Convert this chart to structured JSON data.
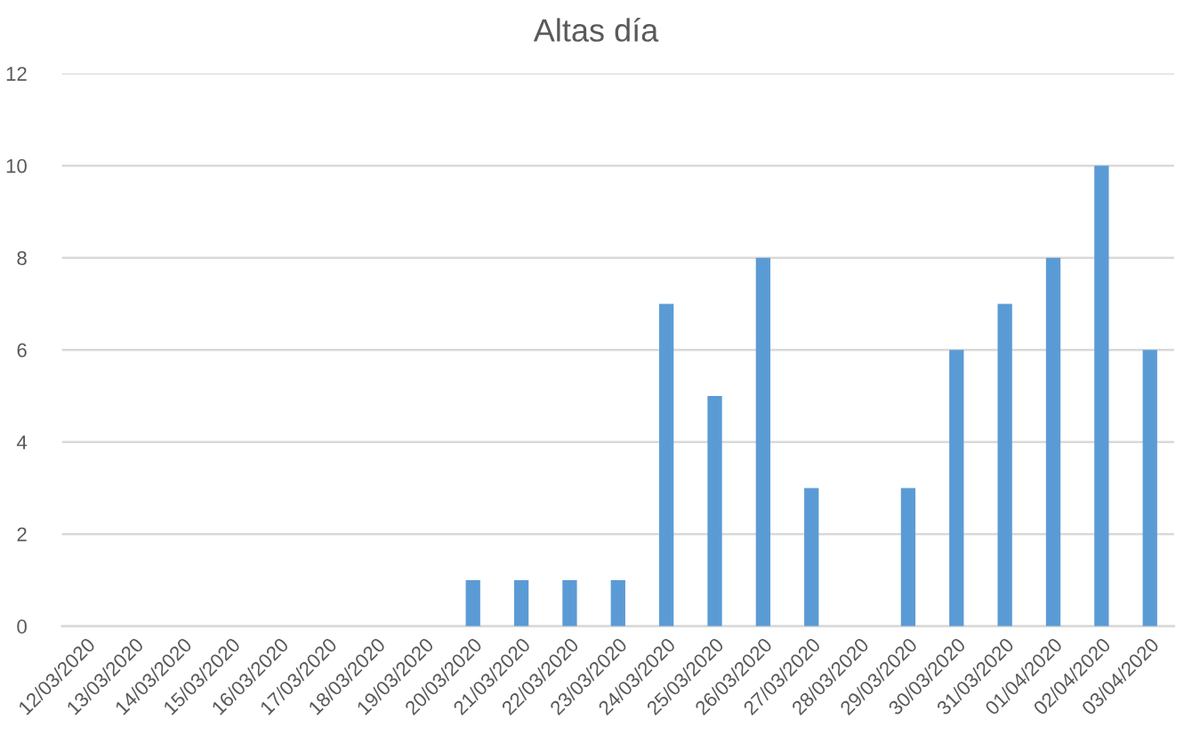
{
  "chart_data": {
    "type": "bar",
    "title": "Altas día",
    "categories": [
      "12/03/2020",
      "13/03/2020",
      "14/03/2020",
      "15/03/2020",
      "16/03/2020",
      "17/03/2020",
      "18/03/2020",
      "19/03/2020",
      "20/03/2020",
      "21/03/2020",
      "22/03/2020",
      "23/03/2020",
      "24/03/2020",
      "25/03/2020",
      "26/03/2020",
      "27/03/2020",
      "28/03/2020",
      "29/03/2020",
      "30/03/2020",
      "31/03/2020",
      "01/04/2020",
      "02/04/2020",
      "03/04/2020"
    ],
    "values": [
      0,
      0,
      0,
      0,
      0,
      0,
      0,
      0,
      1,
      1,
      1,
      1,
      7,
      5,
      8,
      3,
      0,
      3,
      6,
      7,
      8,
      10,
      6
    ],
    "color": "#5b9bd5",
    "ylim": [
      0,
      12
    ],
    "yticks": [
      0,
      2,
      4,
      6,
      8,
      10,
      12
    ],
    "grid": "y"
  }
}
